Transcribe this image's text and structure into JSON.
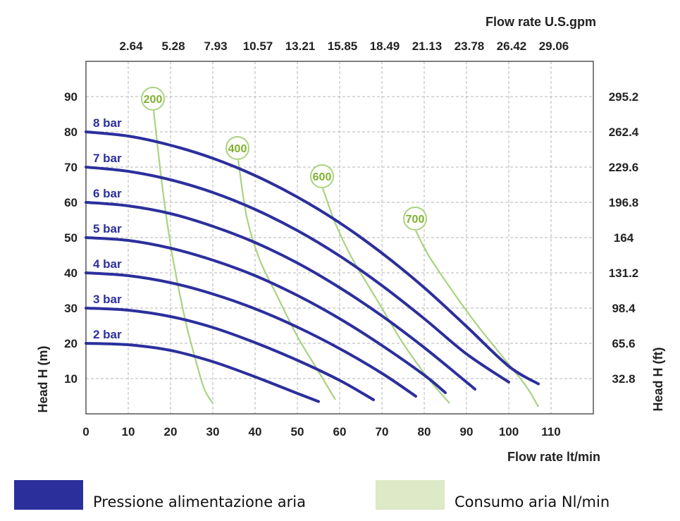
{
  "chart_data": {
    "type": "line",
    "xlabel_bottom": "Flow rate  lt/min",
    "xlabel_top": "Flow rate U.S.gpm",
    "ylabel_left": "Head H (m)",
    "ylabel_right": "Head H (ft)",
    "x_ticks": [
      0,
      10,
      20,
      30,
      40,
      50,
      60,
      70,
      80,
      90,
      100,
      110
    ],
    "x_ticks_top": [
      "2.64",
      "5.28",
      "7.93",
      "10.57",
      "13.21",
      "15.85",
      "18.49",
      "21.13",
      "23.78",
      "26.42",
      "29.06"
    ],
    "y_ticks": [
      10,
      20,
      30,
      40,
      50,
      60,
      70,
      80,
      90
    ],
    "y_ticks_right": [
      "32.8",
      "65.6",
      "98.4",
      "131.2",
      "164",
      "196.8",
      "229.6",
      "262.4",
      "295.2"
    ],
    "xlim": [
      0,
      120
    ],
    "ylim": [
      0,
      100
    ],
    "grid": true,
    "series": [
      {
        "name": "2 bar",
        "color": "#2b2f9c",
        "points": [
          [
            0,
            20
          ],
          [
            10,
            19.6
          ],
          [
            20,
            18
          ],
          [
            30,
            14.8
          ],
          [
            40,
            10.5
          ],
          [
            50,
            5.8
          ],
          [
            55,
            3.5
          ]
        ]
      },
      {
        "name": "3 bar",
        "color": "#2b2f9c",
        "points": [
          [
            0,
            30
          ],
          [
            10,
            29.4
          ],
          [
            20,
            27.6
          ],
          [
            30,
            24.5
          ],
          [
            40,
            20.2
          ],
          [
            50,
            15.2
          ],
          [
            60,
            9.5
          ],
          [
            68,
            4
          ]
        ]
      },
      {
        "name": "4 bar",
        "color": "#2b2f9c",
        "points": [
          [
            0,
            40
          ],
          [
            10,
            39.2
          ],
          [
            20,
            37.2
          ],
          [
            30,
            34
          ],
          [
            40,
            29.8
          ],
          [
            50,
            24.6
          ],
          [
            60,
            18.5
          ],
          [
            70,
            11.5
          ],
          [
            78,
            5
          ]
        ]
      },
      {
        "name": "5 bar",
        "color": "#2b2f9c",
        "points": [
          [
            0,
            50
          ],
          [
            10,
            49.2
          ],
          [
            20,
            47
          ],
          [
            30,
            43.6
          ],
          [
            40,
            39.2
          ],
          [
            50,
            33.6
          ],
          [
            60,
            27
          ],
          [
            70,
            19.4
          ],
          [
            80,
            11
          ],
          [
            85,
            6
          ]
        ]
      },
      {
        "name": "6 bar",
        "color": "#2b2f9c",
        "points": [
          [
            0,
            60
          ],
          [
            10,
            59
          ],
          [
            20,
            56.8
          ],
          [
            30,
            53.2
          ],
          [
            40,
            48.6
          ],
          [
            50,
            42.8
          ],
          [
            60,
            35.8
          ],
          [
            70,
            27.8
          ],
          [
            80,
            18.8
          ],
          [
            90,
            9
          ],
          [
            92,
            7
          ]
        ]
      },
      {
        "name": "7 bar",
        "color": "#2b2f9c",
        "points": [
          [
            0,
            70
          ],
          [
            10,
            68.8
          ],
          [
            20,
            66.4
          ],
          [
            30,
            62.8
          ],
          [
            40,
            58
          ],
          [
            50,
            52
          ],
          [
            60,
            44.8
          ],
          [
            70,
            36.4
          ],
          [
            80,
            27
          ],
          [
            90,
            17
          ],
          [
            100,
            9
          ]
        ]
      },
      {
        "name": "8 bar",
        "color": "#2b2f9c",
        "points": [
          [
            0,
            80
          ],
          [
            10,
            78.8
          ],
          [
            20,
            76.2
          ],
          [
            30,
            72.5
          ],
          [
            40,
            67.6
          ],
          [
            50,
            61.5
          ],
          [
            60,
            54.2
          ],
          [
            70,
            45.6
          ],
          [
            80,
            35.8
          ],
          [
            90,
            24.8
          ],
          [
            100,
            13.5
          ],
          [
            107,
            8.5
          ]
        ]
      }
    ],
    "air_consumption": [
      {
        "label": "200",
        "color": "#a9d37f",
        "points": [
          [
            16,
            86
          ],
          [
            18,
            65
          ],
          [
            20,
            48
          ],
          [
            22,
            35
          ],
          [
            24,
            24
          ],
          [
            26,
            15
          ],
          [
            28,
            7
          ],
          [
            30,
            3
          ]
        ]
      },
      {
        "label": "400",
        "color": "#a9d37f",
        "points": [
          [
            36,
            72
          ],
          [
            38,
            56
          ],
          [
            41,
            44
          ],
          [
            45,
            34
          ],
          [
            50,
            22
          ],
          [
            55,
            12
          ],
          [
            59,
            4
          ]
        ]
      },
      {
        "label": "600",
        "color": "#a9d37f",
        "points": [
          [
            56,
            64
          ],
          [
            59,
            54
          ],
          [
            63,
            44
          ],
          [
            69,
            32
          ],
          [
            75,
            20
          ],
          [
            81,
            10
          ],
          [
            86,
            3
          ]
        ]
      },
      {
        "label": "700",
        "color": "#a9d37f",
        "points": [
          [
            78,
            52
          ],
          [
            81,
            45
          ],
          [
            86,
            36
          ],
          [
            92,
            26
          ],
          [
            98,
            17
          ],
          [
            104,
            8
          ],
          [
            107,
            2
          ]
        ]
      }
    ]
  },
  "legend": {
    "pressure": {
      "label": "Pressione alimentazione aria",
      "color": "#2b2f9c"
    },
    "air": {
      "label": "Consumo aria Nl/min",
      "color": "#dde9c7"
    }
  }
}
